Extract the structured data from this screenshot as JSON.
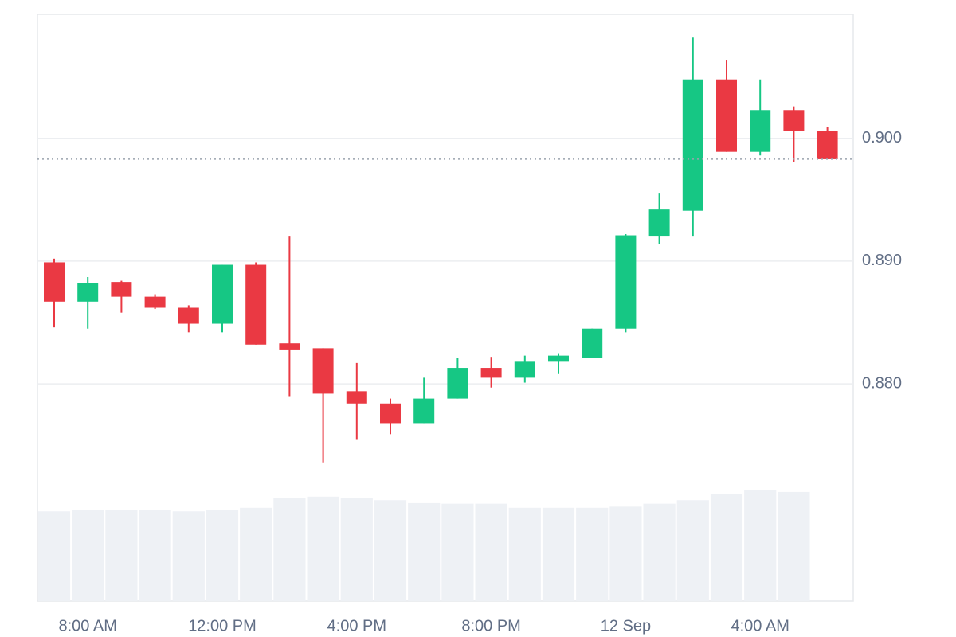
{
  "chart_data": {
    "type": "candlestick",
    "categories": [
      null,
      "8:00 AM",
      null,
      null,
      null,
      "12:00 PM",
      null,
      null,
      null,
      "4:00 PM",
      null,
      null,
      null,
      "8:00 PM",
      null,
      null,
      null,
      "12 Sep",
      null,
      null,
      null,
      "4:00 AM",
      null,
      null
    ],
    "open": [
      0.8899,
      0.8867,
      0.8883,
      0.8871,
      0.8862,
      0.8849,
      0.8897,
      0.8833,
      0.8829,
      0.8794,
      0.8784,
      0.8768,
      0.8788,
      0.8813,
      0.8805,
      0.8818,
      0.8821,
      0.8845,
      0.892,
      0.8941,
      0.9048,
      0.8989,
      0.9023,
      0.9006
    ],
    "high": [
      0.8902,
      0.8887,
      0.8884,
      0.8873,
      0.8864,
      0.8897,
      0.8899,
      0.892,
      0.8829,
      0.8817,
      0.8788,
      0.8805,
      0.8821,
      0.8822,
      0.8823,
      0.8825,
      0.8845,
      0.8922,
      0.8955,
      0.9082,
      0.9064,
      0.9048,
      0.9026,
      0.9009
    ],
    "low": [
      0.8846,
      0.8845,
      0.8858,
      0.8861,
      0.8842,
      0.8842,
      0.8832,
      0.879,
      0.8736,
      0.8755,
      0.8759,
      0.8768,
      0.8788,
      0.8797,
      0.8801,
      0.8808,
      0.8821,
      0.8842,
      0.8914,
      0.892,
      0.8989,
      0.8986,
      0.8981,
      0.8983
    ],
    "close": [
      0.8867,
      0.8882,
      0.8871,
      0.8862,
      0.8849,
      0.8897,
      0.8832,
      0.8828,
      0.8792,
      0.8784,
      0.8768,
      0.8788,
      0.8813,
      0.8805,
      0.8818,
      0.8823,
      0.8845,
      0.8921,
      0.8942,
      0.9048,
      0.8989,
      0.9023,
      0.9006,
      0.8983
    ],
    "volume": [
      15.3,
      15.6,
      15.6,
      15.6,
      15.3,
      15.6,
      15.9,
      17.5,
      17.8,
      17.5,
      17.2,
      16.7,
      16.6,
      16.6,
      15.9,
      15.9,
      15.9,
      16.1,
      16.6,
      17.2,
      18.3,
      18.9,
      18.6,
      0
    ],
    "up_color": "#16c784",
    "down_color": "#ea3943",
    "volume_color": "#eef1f5",
    "ylim": [
      0.8623,
      0.9101
    ],
    "volume_lim": [
      0,
      100
    ],
    "yticks": [
      {
        "value": 0.88,
        "label": "0.880"
      },
      {
        "value": 0.89,
        "label": "0.890"
      },
      {
        "value": 0.9,
        "label": "0.900"
      }
    ],
    "grid": true,
    "last_price_line": true
  }
}
